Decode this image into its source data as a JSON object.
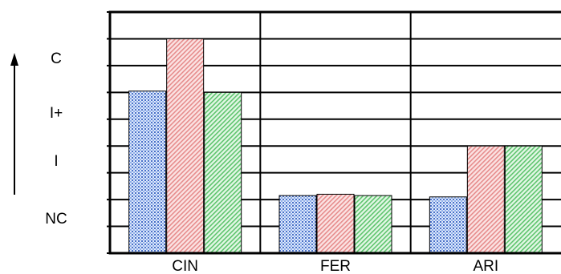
{
  "chart_data": {
    "type": "bar",
    "categories": [
      "CIN",
      "FER",
      "ARI"
    ],
    "y_levels": [
      "NC",
      "I",
      "I+",
      "C"
    ],
    "ylim": [
      0,
      9
    ],
    "grid": true,
    "legend": "none",
    "series": [
      {
        "color": "#6a8fd8",
        "pattern": "dots",
        "values": [
          6.05,
          2.15,
          2.1
        ]
      },
      {
        "color": "#f2a6a6",
        "pattern": "diagonal",
        "values": [
          8.0,
          2.2,
          4.0
        ]
      },
      {
        "color": "#7ed68a",
        "pattern": "diagonal",
        "values": [
          6.0,
          2.15,
          4.0
        ]
      }
    ]
  }
}
